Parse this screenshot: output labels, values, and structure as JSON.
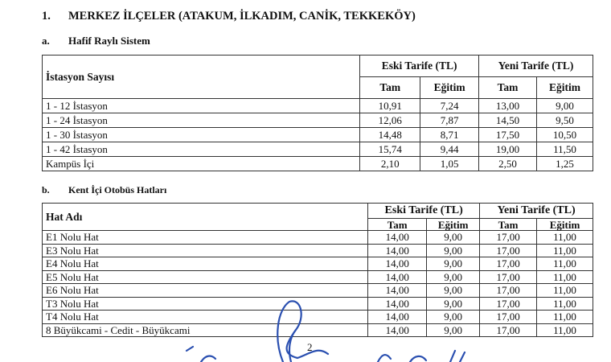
{
  "heading": {
    "number": "1.",
    "text": "MERKEZ İLÇELER (ATAKUM, İLKADIM, CANİK, TEKKEKÖY)"
  },
  "section_a": {
    "number": "a.",
    "title": "Hafif Raylı Sistem",
    "headers": {
      "name": "İstasyon Sayısı",
      "old": "Eski Tarife (TL)",
      "new": "Yeni Tarife (TL)",
      "full": "Tam",
      "edu": "Eğitim"
    },
    "rows": [
      {
        "name": "1 - 12 İstasyon",
        "old_full": "10,91",
        "old_edu": "7,24",
        "new_full": "13,00",
        "new_edu": "9,00"
      },
      {
        "name": "1 - 24 İstasyon",
        "old_full": "12,06",
        "old_edu": "7,87",
        "new_full": "14,50",
        "new_edu": "9,50"
      },
      {
        "name": "1 - 30 İstasyon",
        "old_full": "14,48",
        "old_edu": "8,71",
        "new_full": "17,50",
        "new_edu": "10,50"
      },
      {
        "name": "1 - 42 İstasyon",
        "old_full": "15,74",
        "old_edu": "9,44",
        "new_full": "19,00",
        "new_edu": "11,50"
      },
      {
        "name": "Kampüs İçi",
        "old_full": "2,10",
        "old_edu": "1,05",
        "new_full": "2,50",
        "new_edu": "1,25"
      }
    ]
  },
  "section_b": {
    "number": "b.",
    "title": "Kent İçi Otobüs Hatları",
    "headers": {
      "name": "Hat Adı",
      "old": "Eski Tarife (TL)",
      "new": "Yeni Tarife (TL)",
      "full": "Tam",
      "edu": "Eğitim"
    },
    "rows": [
      {
        "name": "E1 Nolu Hat",
        "old_full": "14,00",
        "old_edu": "9,00",
        "new_full": "17,00",
        "new_edu": "11,00"
      },
      {
        "name": "E3 Nolu Hat",
        "old_full": "14,00",
        "old_edu": "9,00",
        "new_full": "17,00",
        "new_edu": "11,00"
      },
      {
        "name": "E4 Nolu Hat",
        "old_full": "14,00",
        "old_edu": "9,00",
        "new_full": "17,00",
        "new_edu": "11,00"
      },
      {
        "name": "E5 Nolu Hat",
        "old_full": "14,00",
        "old_edu": "9,00",
        "new_full": "17,00",
        "new_edu": "11,00"
      },
      {
        "name": "E6 Nolu Hat",
        "old_full": "14,00",
        "old_edu": "9,00",
        "new_full": "17,00",
        "new_edu": "11,00"
      },
      {
        "name": "T3 Nolu Hat",
        "old_full": "14,00",
        "old_edu": "9,00",
        "new_full": "17,00",
        "new_edu": "11,00"
      },
      {
        "name": "T4 Nolu Hat",
        "old_full": "14,00",
        "old_edu": "9,00",
        "new_full": "17,00",
        "new_edu": "11,00"
      },
      {
        "name": "8 Büyükcami - Cedit - Büyükcami",
        "old_full": "14,00",
        "old_edu": "9,00",
        "new_full": "17,00",
        "new_edu": "11,00"
      }
    ]
  },
  "page_number": "2",
  "signature_color": "#2a4fb0"
}
